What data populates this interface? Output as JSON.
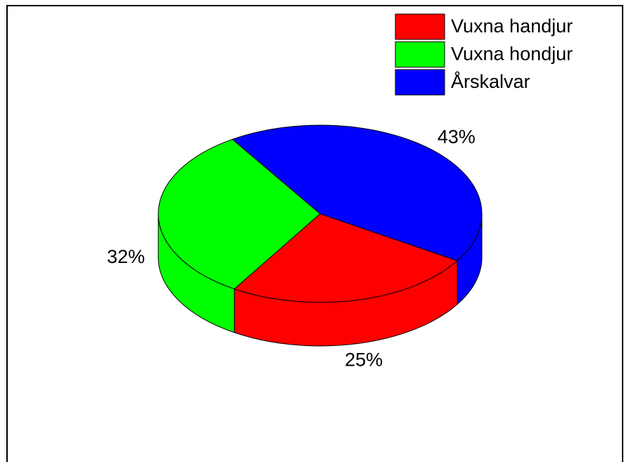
{
  "chart_data": {
    "type": "pie",
    "categories": [
      "Vuxna handjur",
      "Vuxna hondjur",
      "Årskalvar"
    ],
    "values": [
      25,
      32,
      43
    ],
    "value_labels": [
      "25%",
      "32%",
      "43%"
    ],
    "colors": [
      "#ff0000",
      "#00ff00",
      "#0000ff"
    ],
    "legend": "upper right"
  }
}
